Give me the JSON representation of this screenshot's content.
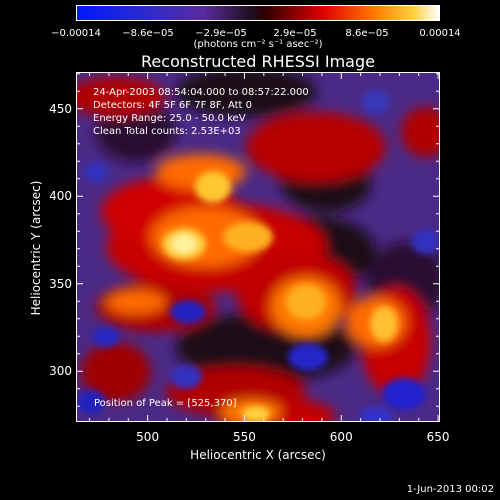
{
  "colorbar": {
    "tick_labels": [
      "−0.00014",
      "−8.6e−05",
      "−2.9e−05",
      "2.9e−05",
      "8.6e−05",
      "0.00014"
    ],
    "unit": "(photons cm⁻² s⁻¹ asec⁻²)"
  },
  "annotations": {
    "line1": "24-Apr-2003 08:54:04.000 to 08:57:22.000",
    "line2": "Detectors: 4F 5F 6F 7F 8F, Att 0",
    "line3": "Energy Range: 25.0 - 50.0 keV",
    "line4": "Clean    Total counts: 2.53E+03",
    "peak": "Position of Peak = [525,370]"
  },
  "footer": {
    "date": "1-Jun-2013 00:02"
  },
  "chart_data": {
    "type": "heatmap",
    "title": "Reconstructed RHESSI Image",
    "xlabel": "Heliocentric X (arcsec)",
    "ylabel": "Heliocentric Y (arcsec)",
    "xlim": [
      463,
      651
    ],
    "ylim": [
      271,
      471
    ],
    "xticks": [
      500,
      550,
      600,
      650
    ],
    "yticks": [
      300,
      350,
      400,
      450
    ],
    "colorscale": "rainbow_black_white (blue negative, purple near zero, red/orange/yellow positive)",
    "colorbar_range": [
      -0.00014,
      0.00014
    ],
    "peak_position": [
      525,
      370
    ],
    "colors": {
      "deep_blue": "#2020c8",
      "purple": "#5a2a90",
      "dark": "#1a0818",
      "red": "#d80000",
      "orange": "#ff7a00",
      "yellow": "#ffe060",
      "white": "#ffffff"
    }
  }
}
